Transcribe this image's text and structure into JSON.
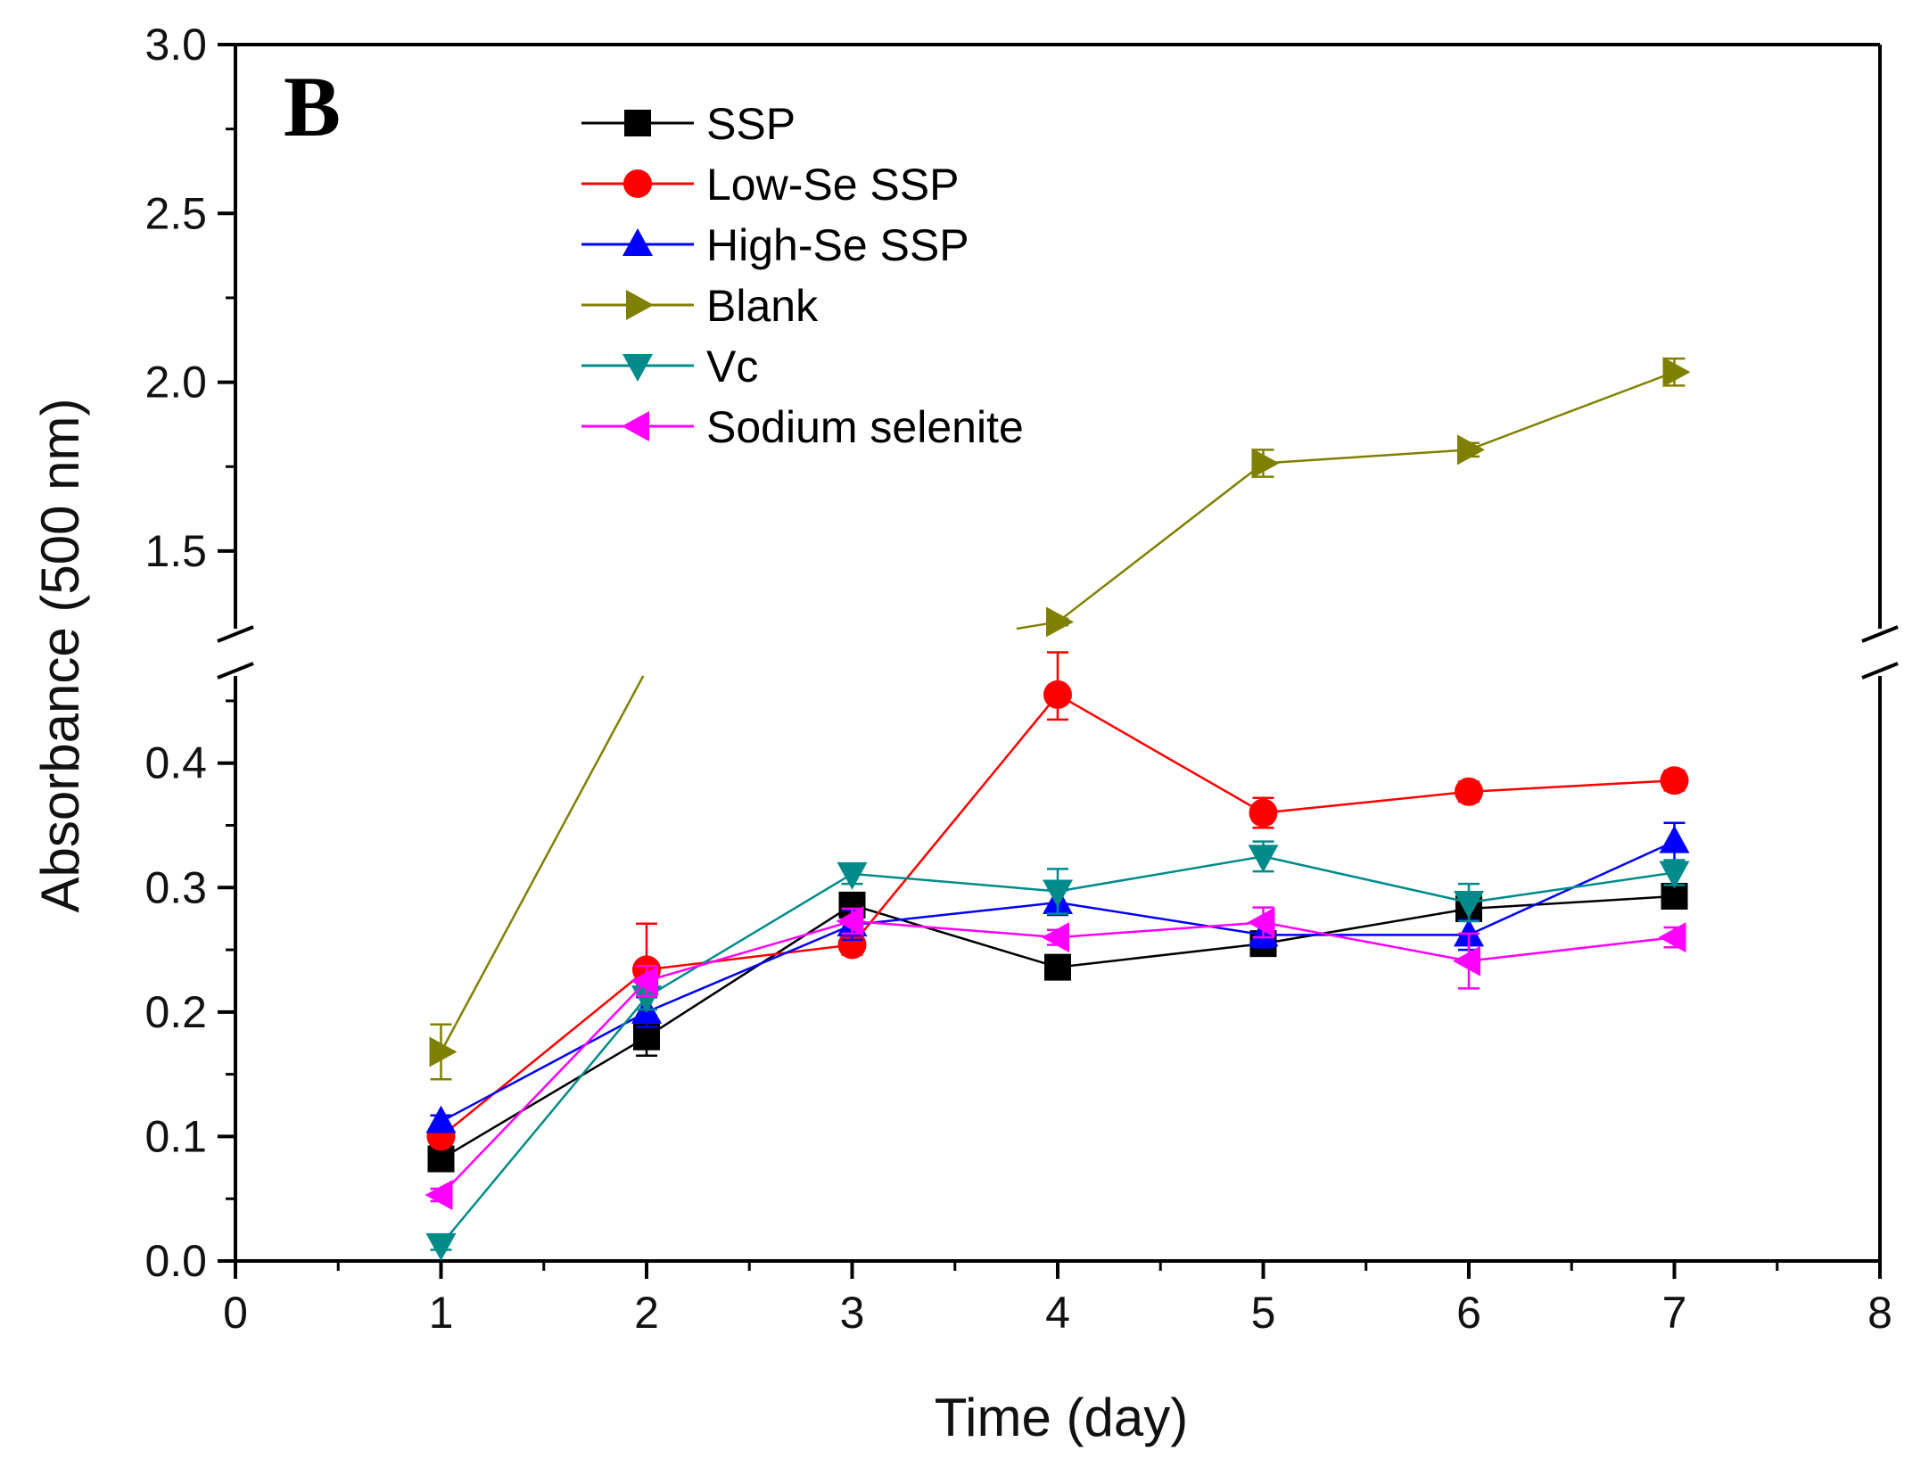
{
  "chart_data": {
    "type": "line",
    "panel_label": "B",
    "xlabel": "Time (day)",
    "ylabel": "Absorbance (500 nm)",
    "xlim": [
      0,
      8
    ],
    "x_ticks": [
      "0",
      "1",
      "2",
      "3",
      "4",
      "5",
      "6",
      "7",
      "8"
    ],
    "y_break": {
      "lower_range": [
        0.0,
        0.47
      ],
      "upper_range": [
        1.27,
        3.0
      ]
    },
    "y_ticks_lower": [
      "0.0",
      "0.1",
      "0.2",
      "0.3",
      "0.4"
    ],
    "y_ticks_upper": [
      "1.5",
      "2.0",
      "2.5",
      "3.0"
    ],
    "x": [
      1,
      2,
      3,
      4,
      5,
      6,
      7
    ],
    "legend_position": "top-center",
    "series": [
      {
        "name": "SSP",
        "color": "#000000",
        "marker": "square",
        "values": [
          0.082,
          0.18,
          0.286,
          0.236,
          0.255,
          0.283,
          0.293
        ],
        "errors": [
          0.006,
          0.015,
          0.008,
          0.006,
          0.006,
          0.008,
          0.008
        ]
      },
      {
        "name": "Low-Se SSP",
        "color": "#ff0000",
        "marker": "circle",
        "values": [
          0.1,
          0.234,
          0.254,
          0.455,
          0.36,
          0.377,
          0.386
        ],
        "errors": [
          0.006,
          0.037,
          0.008,
          0.02,
          0.012,
          0.008,
          0.008
        ]
      },
      {
        "name": "High-Se SSP",
        "color": "#0000ff",
        "marker": "triangle-up",
        "values": [
          0.112,
          0.2,
          0.27,
          0.288,
          0.262,
          0.262,
          0.337
        ],
        "errors": [
          0.005,
          0.012,
          0.012,
          0.01,
          0.01,
          0.012,
          0.015
        ]
      },
      {
        "name": "Blank",
        "color": "#808000",
        "marker": "triangle-right",
        "values": [
          0.168,
          0.475,
          1.19,
          1.29,
          1.76,
          1.8,
          2.03
        ],
        "errors": [
          0.022,
          0.005,
          0.005,
          0.01,
          0.04,
          0.02,
          0.04
        ]
      },
      {
        "name": "Vc",
        "color": "#008b8b",
        "marker": "triangle-down",
        "values": [
          0.013,
          0.212,
          0.311,
          0.297,
          0.325,
          0.288,
          0.312
        ],
        "errors": [
          0.004,
          0.01,
          0.008,
          0.018,
          0.012,
          0.015,
          0.01
        ]
      },
      {
        "name": "Sodium selenite",
        "color": "#ff00ff",
        "marker": "triangle-left",
        "values": [
          0.053,
          0.225,
          0.273,
          0.26,
          0.272,
          0.241,
          0.26
        ],
        "errors": [
          0.005,
          0.012,
          0.01,
          0.006,
          0.012,
          0.022,
          0.008
        ]
      }
    ]
  }
}
